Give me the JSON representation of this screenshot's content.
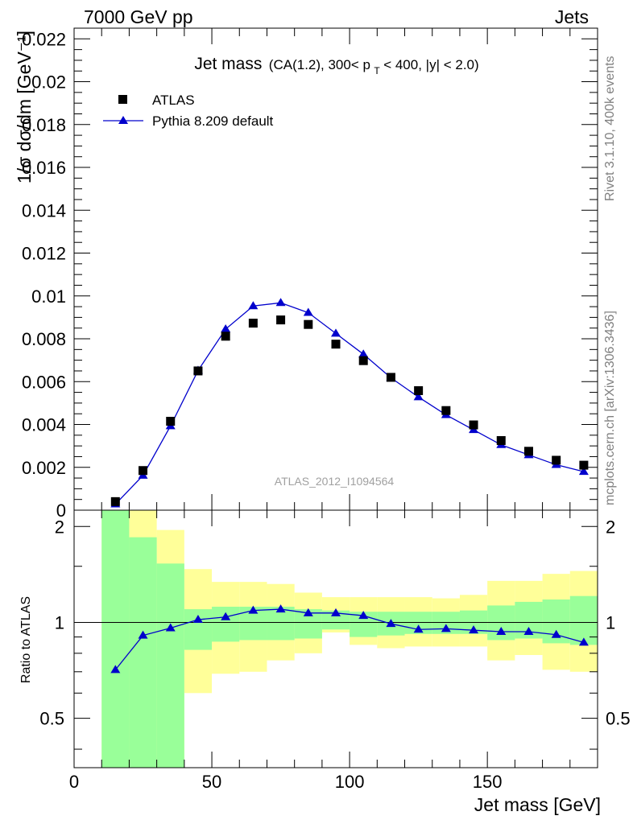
{
  "header": {
    "left": "7000 GeV pp",
    "right": "Jets"
  },
  "side_labels": {
    "rivet": "Rivet 3.1.10,  400k events",
    "mcplots": "mcplots.cern.ch [arXiv:1306.3436]"
  },
  "plot_title": {
    "main": "Jet mass",
    "cuts_a": "(CA(1.2), 300< p",
    "cuts_sub": "T",
    "cuts_b": " < 400, |y| < 2.0)"
  },
  "analysis_id": "ATLAS_2012_I1094564",
  "colors": {
    "data": "#000000",
    "mc": "#0000cc",
    "band_inner": "#99ff99",
    "band_outer": "#ffff99"
  },
  "chart_data": [
    {
      "type": "scatter",
      "panel": "main",
      "ylabel": "1/σ dσ/dm [GeV⁻¹]",
      "xlim": [
        0,
        190
      ],
      "ylim": [
        0,
        0.0225
      ],
      "x_ticks": [
        0,
        50,
        100,
        150
      ],
      "y_ticks": [
        "0",
        "0.002",
        "0.004",
        "0.006",
        "0.008",
        "0.01",
        "0.012",
        "0.014",
        "0.016",
        "0.018",
        "0.02",
        "0.022"
      ],
      "legend_position": "top-left",
      "series": [
        {
          "name": "ATLAS",
          "marker": "square",
          "x": [
            15,
            25,
            35,
            45,
            55,
            65,
            75,
            85,
            95,
            105,
            115,
            125,
            135,
            145,
            155,
            165,
            175,
            185
          ],
          "y": [
            0.0004,
            0.00185,
            0.00415,
            0.0065,
            0.00812,
            0.00873,
            0.00888,
            0.00867,
            0.00775,
            0.00698,
            0.0062,
            0.00558,
            0.00465,
            0.00398,
            0.00325,
            0.00275,
            0.00233,
            0.0021
          ]
        },
        {
          "name": "Pythia 8.209 default",
          "marker": "triangle",
          "line": true,
          "x": [
            15,
            25,
            35,
            45,
            55,
            65,
            75,
            85,
            95,
            105,
            115,
            125,
            135,
            145,
            155,
            165,
            175,
            185
          ],
          "y": [
            0.00028,
            0.00162,
            0.00393,
            0.00652,
            0.00845,
            0.00953,
            0.00968,
            0.00922,
            0.00825,
            0.00728,
            0.00618,
            0.00528,
            0.00445,
            0.00375,
            0.00305,
            0.00258,
            0.00212,
            0.0018
          ]
        }
      ]
    },
    {
      "type": "line",
      "panel": "ratio",
      "ylabel": "Ratio to ATLAS",
      "xlabel": "Jet mass [GeV]",
      "xlim": [
        0,
        190
      ],
      "ylim": [
        0.35,
        2.25
      ],
      "x_ticks": [
        0,
        50,
        100,
        150
      ],
      "y_ticks": [
        0.5,
        1,
        2
      ],
      "bins": [
        [
          10,
          20
        ],
        [
          20,
          30
        ],
        [
          30,
          40
        ],
        [
          40,
          50
        ],
        [
          50,
          60
        ],
        [
          60,
          70
        ],
        [
          70,
          80
        ],
        [
          80,
          90
        ],
        [
          90,
          100
        ],
        [
          100,
          110
        ],
        [
          110,
          120
        ],
        [
          120,
          130
        ],
        [
          130,
          140
        ],
        [
          140,
          150
        ],
        [
          150,
          160
        ],
        [
          160,
          170
        ],
        [
          170,
          180
        ],
        [
          180,
          190
        ]
      ],
      "band_inner": {
        "lo": [
          0.35,
          0.35,
          0.35,
          0.82,
          0.87,
          0.88,
          0.88,
          0.89,
          0.95,
          0.9,
          0.91,
          0.92,
          0.92,
          0.92,
          0.88,
          0.89,
          0.86,
          0.85
        ],
        "hi": [
          2.25,
          1.85,
          1.53,
          1.1,
          1.12,
          1.12,
          1.12,
          1.1,
          1.09,
          1.08,
          1.08,
          1.08,
          1.08,
          1.09,
          1.13,
          1.16,
          1.18,
          1.21
        ]
      },
      "band_outer": {
        "lo": [
          0.35,
          0.35,
          0.35,
          0.6,
          0.69,
          0.7,
          0.76,
          0.8,
          0.93,
          0.85,
          0.83,
          0.84,
          0.84,
          0.84,
          0.76,
          0.79,
          0.71,
          0.7
        ],
        "hi": [
          2.25,
          2.25,
          1.95,
          1.47,
          1.34,
          1.34,
          1.32,
          1.24,
          1.2,
          1.2,
          1.2,
          1.2,
          1.19,
          1.22,
          1.35,
          1.35,
          1.42,
          1.45
        ]
      },
      "series": [
        {
          "name": "Pythia 8.209 default",
          "x": [
            15,
            25,
            35,
            45,
            55,
            65,
            75,
            85,
            95,
            105,
            115,
            125,
            135,
            145,
            155,
            165,
            175,
            185
          ],
          "y": [
            0.71,
            0.91,
            0.96,
            1.02,
            1.04,
            1.09,
            1.1,
            1.07,
            1.07,
            1.05,
            0.99,
            0.95,
            0.955,
            0.945,
            0.935,
            0.935,
            0.915,
            0.865
          ]
        }
      ]
    }
  ]
}
